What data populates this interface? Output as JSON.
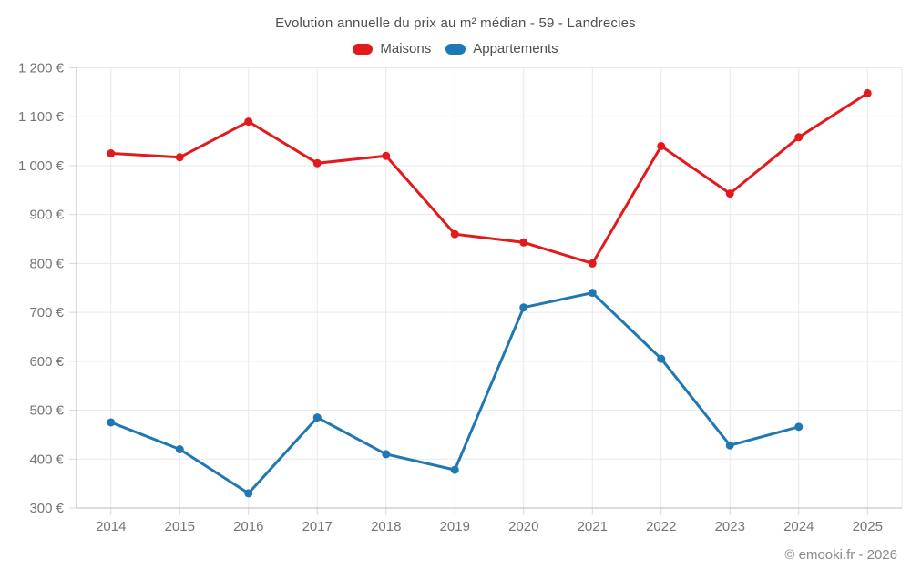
{
  "title": "Evolution annuelle du prix au m² médian - 59 - Landrecies",
  "watermark": "© emooki.fr - 2026",
  "chart_data": {
    "type": "line",
    "categories": [
      "2014",
      "2015",
      "2016",
      "2017",
      "2018",
      "2019",
      "2020",
      "2021",
      "2022",
      "2023",
      "2024",
      "2025"
    ],
    "series": [
      {
        "name": "Maisons",
        "color": "#e31a1c",
        "values": [
          1025,
          1017,
          1090,
          1005,
          1020,
          860,
          843,
          800,
          1040,
          943,
          1058,
          1148
        ]
      },
      {
        "name": "Appartements",
        "color": "#1f78b4",
        "values": [
          475,
          420,
          330,
          485,
          410,
          378,
          710,
          740,
          605,
          428,
          466,
          null
        ]
      }
    ],
    "title": "Evolution annuelle du prix au m² médian - 59 - Landrecies",
    "xlabel": "",
    "ylabel": "",
    "ylim": [
      300,
      1200
    ],
    "ytick_step": 100,
    "ytick_labels": [
      "300 €",
      "400 €",
      "500 €",
      "600 €",
      "700 €",
      "800 €",
      "900 €",
      "1 000 €",
      "1 100 €",
      "1 200 €"
    ],
    "grid": true,
    "legend_position": "top",
    "line_width": 3,
    "point_radius": 4.5
  },
  "ui_colors": {
    "background": "#ffffff",
    "grid": "#e9e9e9",
    "axis_border": "#b8b8b8",
    "tick_mark": "#d9d9d9",
    "title_text": "#4f4f4f",
    "tick_text": "#757575",
    "watermark_text": "#8a8a8a"
  }
}
